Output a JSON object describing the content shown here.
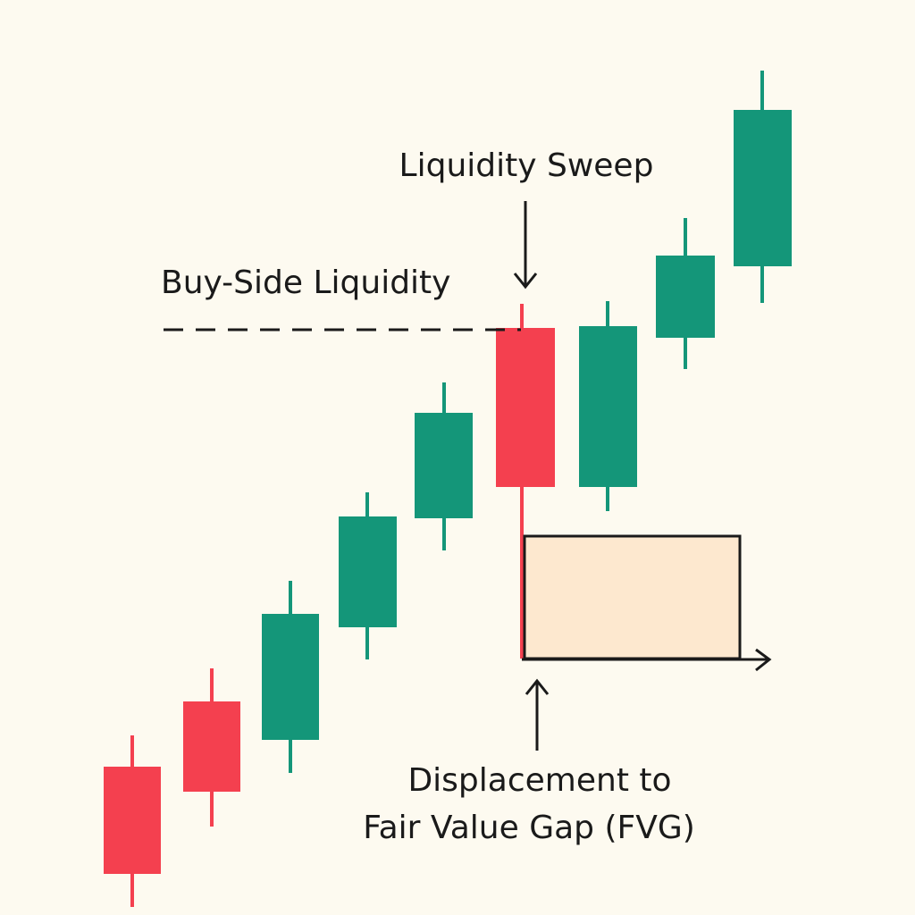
{
  "annotations": {
    "liquidity_sweep": "Liquidity Sweep",
    "buy_side": "Buy-Side Liquidity",
    "displacement": [
      "Displacement to",
      "Fair Value Gap (FVG)"
    ]
  }
}
